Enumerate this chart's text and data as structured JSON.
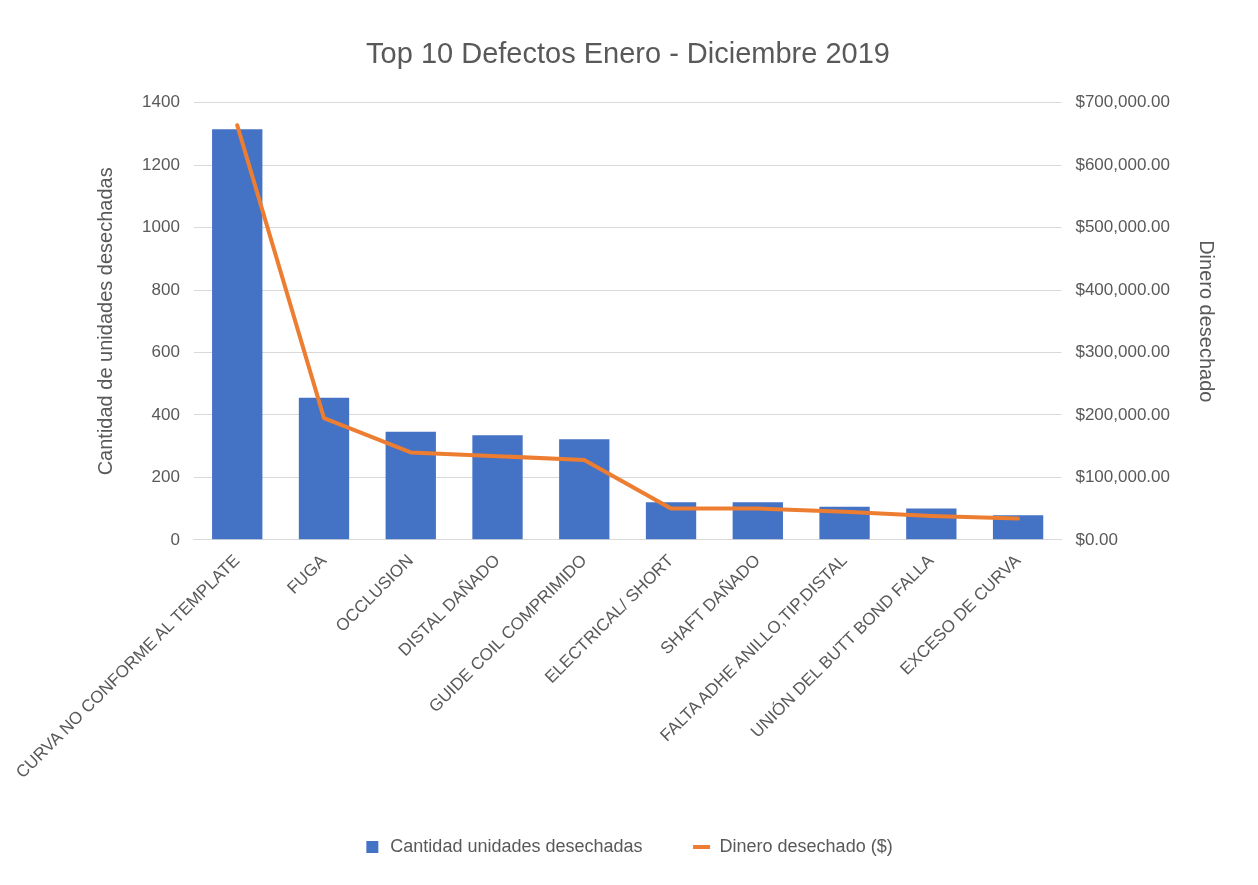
{
  "chart_data": {
    "type": "bar",
    "title": "Top 10 Defectos Enero - Diciembre 2019",
    "ylabel": "Cantidad de unidades desechadas",
    "y2label": "Dinero desechado",
    "categories": [
      "CURVA NO CONFORME AL TEMPLATE",
      "FUGA",
      "OCCLUSION",
      "DISTAL DAÑADO",
      "GUIDE COIL COMPRIMIDO",
      "ELECTRICAL/ SHORT",
      "SHAFT DAÑADO",
      "FALTA ADHE ANILLO,TIP,DISTAL",
      "UNIÓN DEL BUTT BOND FALLA",
      "EXCESO DE CURVA"
    ],
    "series": [
      {
        "name": "Cantidad unidades desechadas",
        "color": "#4472c4",
        "values": [
          1315,
          455,
          346,
          335,
          322,
          120,
          120,
          106,
          100,
          79
        ]
      },
      {
        "name": "Dinero desechado ($)",
        "type": "line",
        "axis": "y2",
        "color": "#ed7d31",
        "values": [
          664000,
          195000,
          140000,
          134000,
          128000,
          50000,
          50000,
          45000,
          38000,
          34000
        ]
      }
    ],
    "ylim": [
      0,
      1400
    ],
    "yticks": [
      0,
      200,
      400,
      600,
      800,
      1000,
      1200,
      1400
    ],
    "y2lim": [
      0,
      700000
    ],
    "y2ticks": [
      {
        "value": 0,
        "label": "$0.00"
      },
      {
        "value": 100000,
        "label": "$100,000.00"
      },
      {
        "value": 200000,
        "label": "$200,000.00"
      },
      {
        "value": 300000,
        "label": "$300,000.00"
      },
      {
        "value": 400000,
        "label": "$400,000.00"
      },
      {
        "value": 500000,
        "label": "$500,000.00"
      },
      {
        "value": 600000,
        "label": "$600,000.00"
      },
      {
        "value": 700000,
        "label": "$700,000.00"
      }
    ],
    "grid": "y",
    "legend": "bottom",
    "marker": "none"
  }
}
